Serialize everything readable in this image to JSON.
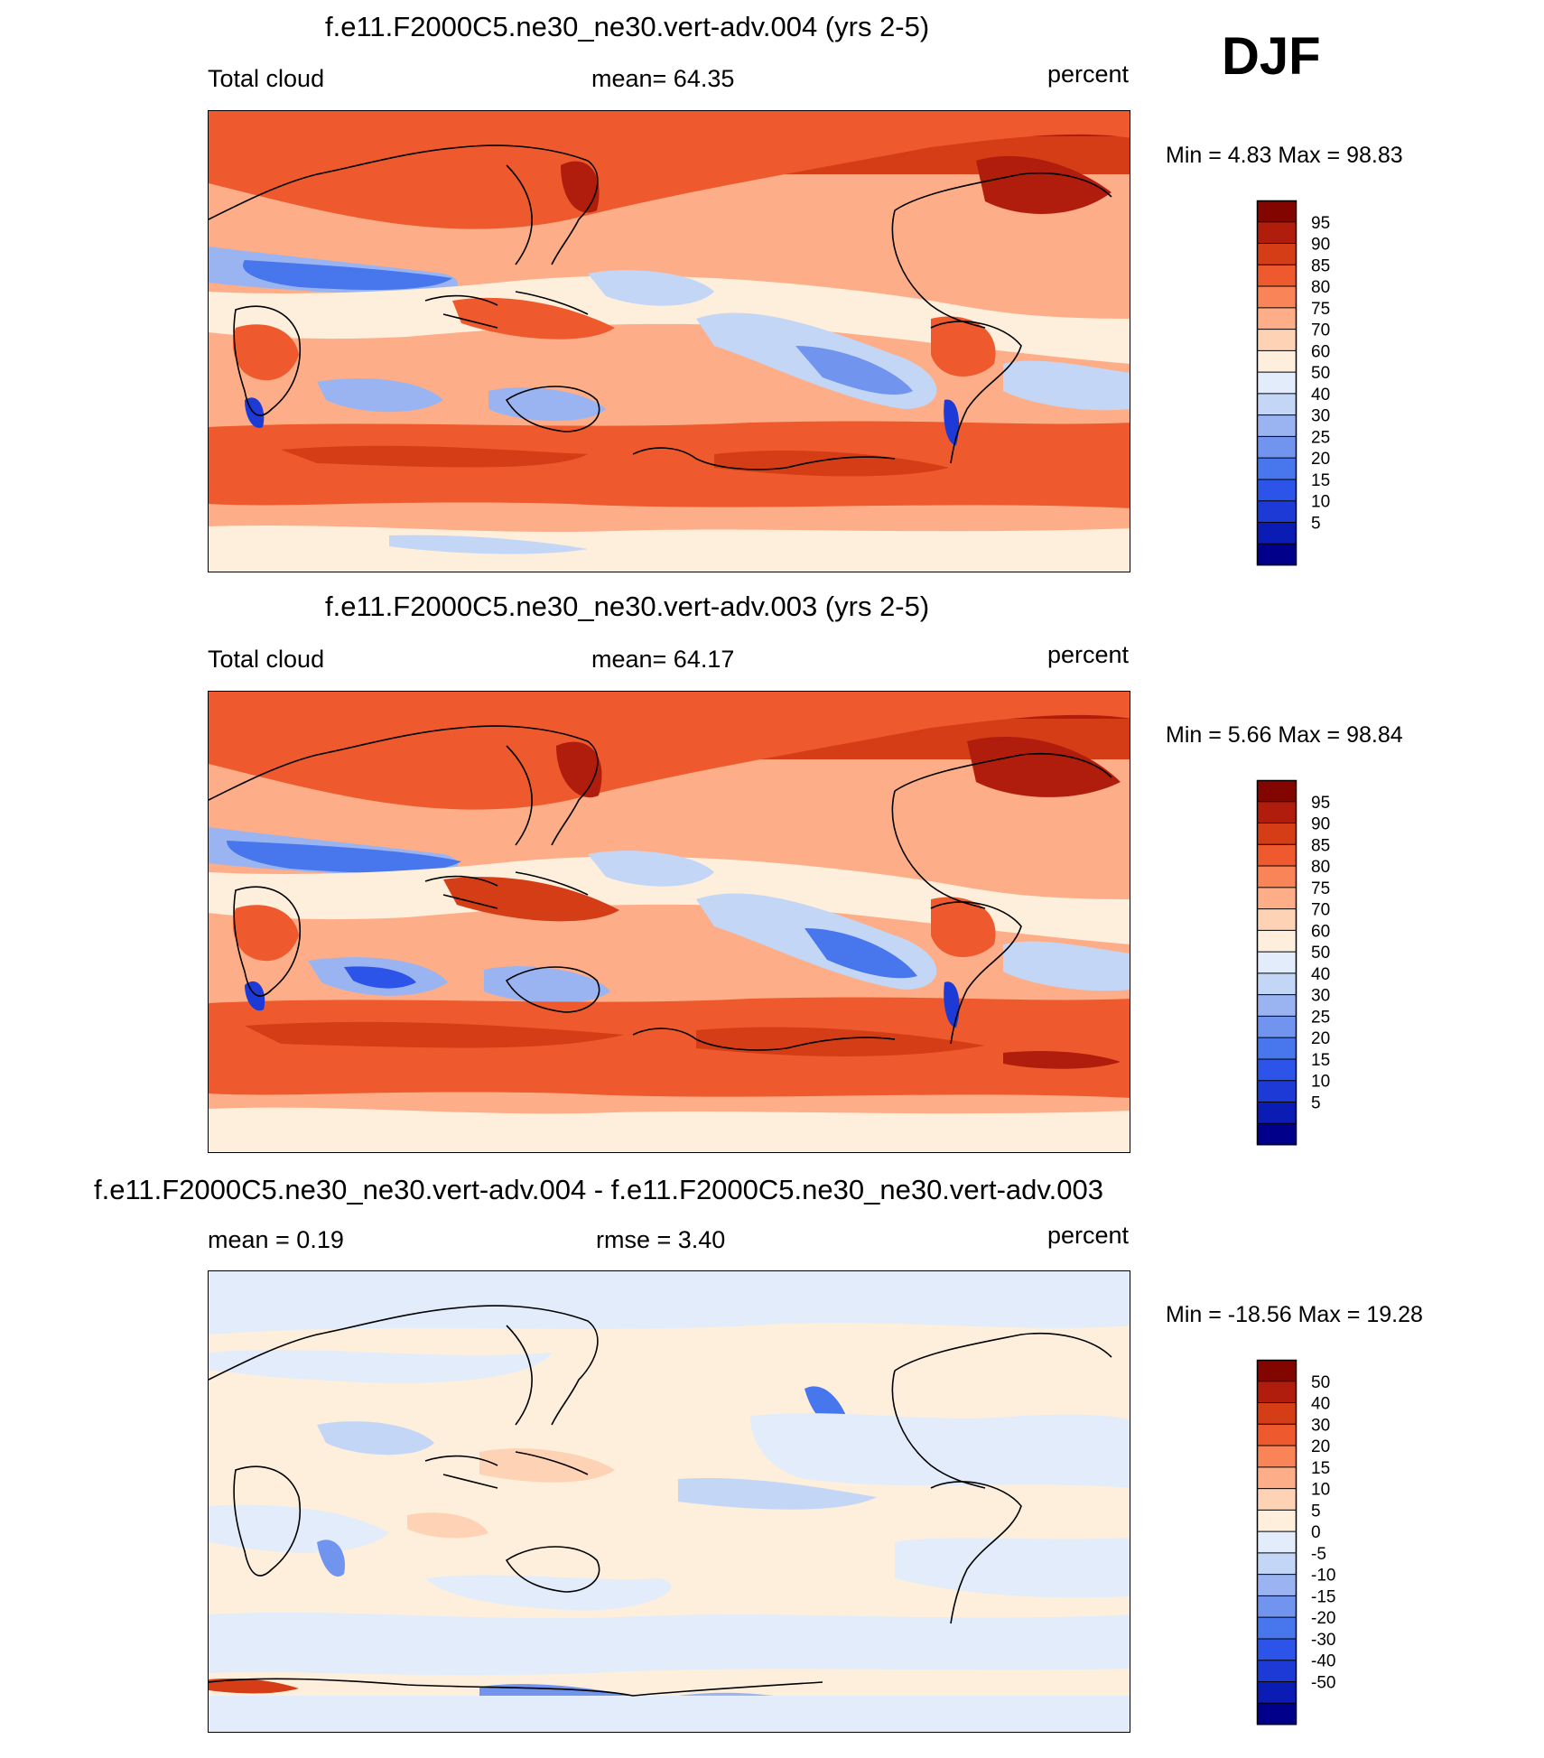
{
  "season": "DJF",
  "colors": {
    "abs_scale": [
      "#00008b",
      "#0a1cb4",
      "#1d3ad6",
      "#2c54e8",
      "#4876ec",
      "#7194ee",
      "#9ab4f2",
      "#c3d6f6",
      "#e2ecfa",
      "#fdefdc",
      "#fed2b5",
      "#fdae88",
      "#f98458",
      "#ee5a2e",
      "#d43d16",
      "#b01d0d",
      "#820500"
    ],
    "diff_scale": [
      "#00008b",
      "#0a1cb4",
      "#1d3ad6",
      "#2c54e8",
      "#4876ec",
      "#7194ee",
      "#9ab4f2",
      "#c3d6f6",
      "#e2ecfa",
      "#fdefdc",
      "#fed2b5",
      "#fdae88",
      "#f98458",
      "#ee5a2e",
      "#d43d16",
      "#b01d0d",
      "#820500"
    ]
  },
  "panels": [
    {
      "title": "f.e11.F2000C5.ne30_ne30.vert-adv.004 (yrs 2-5)",
      "left_label": "Total cloud",
      "center_label": "mean=  64.35",
      "units": "percent",
      "minmax": "Min =   4.83 Max =  98.83",
      "colorbar": [
        "95",
        "90",
        "85",
        "80",
        "75",
        "70",
        "60",
        "50",
        "40",
        "30",
        "25",
        "20",
        "15",
        "10",
        "5"
      ]
    },
    {
      "title": "f.e11.F2000C5.ne30_ne30.vert-adv.003 (yrs 2-5)",
      "left_label": "Total cloud",
      "center_label": "mean=  64.17",
      "units": "percent",
      "minmax": "Min =   5.66 Max =  98.84",
      "colorbar": [
        "95",
        "90",
        "85",
        "80",
        "75",
        "70",
        "60",
        "50",
        "40",
        "30",
        "25",
        "20",
        "15",
        "10",
        "5"
      ]
    },
    {
      "title": "f.e11.F2000C5.ne30_ne30.vert-adv.004 - f.e11.F2000C5.ne30_ne30.vert-adv.003",
      "left_label": "mean =   0.19",
      "center_label": "rmse =   3.40",
      "units": "percent",
      "minmax": "Min = -18.56 Max =  19.28",
      "colorbar": [
        "50",
        "40",
        "30",
        "20",
        "15",
        "10",
        "5",
        "0",
        "-5",
        "-10",
        "-15",
        "-20",
        "-30",
        "-40",
        "-50"
      ]
    }
  ],
  "chart_data": [
    {
      "type": "heatmap",
      "title": "f.e11.F2000C5.ne30_ne30.vert-adv.004 (yrs 2-5)",
      "field": "Total cloud",
      "units": "percent",
      "mean": 64.35,
      "min": 4.83,
      "max": 98.83,
      "contour_levels": [
        5,
        10,
        15,
        20,
        25,
        30,
        40,
        50,
        60,
        70,
        75,
        80,
        85,
        90,
        95
      ]
    },
    {
      "type": "heatmap",
      "title": "f.e11.F2000C5.ne30_ne30.vert-adv.003 (yrs 2-5)",
      "field": "Total cloud",
      "units": "percent",
      "mean": 64.17,
      "min": 5.66,
      "max": 98.84,
      "contour_levels": [
        5,
        10,
        15,
        20,
        25,
        30,
        40,
        50,
        60,
        70,
        75,
        80,
        85,
        90,
        95
      ]
    },
    {
      "type": "heatmap",
      "title": "f.e11.F2000C5.ne30_ne30.vert-adv.004 - f.e11.F2000C5.ne30_ne30.vert-adv.003",
      "units": "percent",
      "mean": 0.19,
      "rmse": 3.4,
      "min": -18.56,
      "max": 19.28,
      "contour_levels": [
        -50,
        -40,
        -30,
        -20,
        -15,
        -10,
        -5,
        0,
        5,
        10,
        15,
        20,
        30,
        40,
        50
      ]
    }
  ]
}
